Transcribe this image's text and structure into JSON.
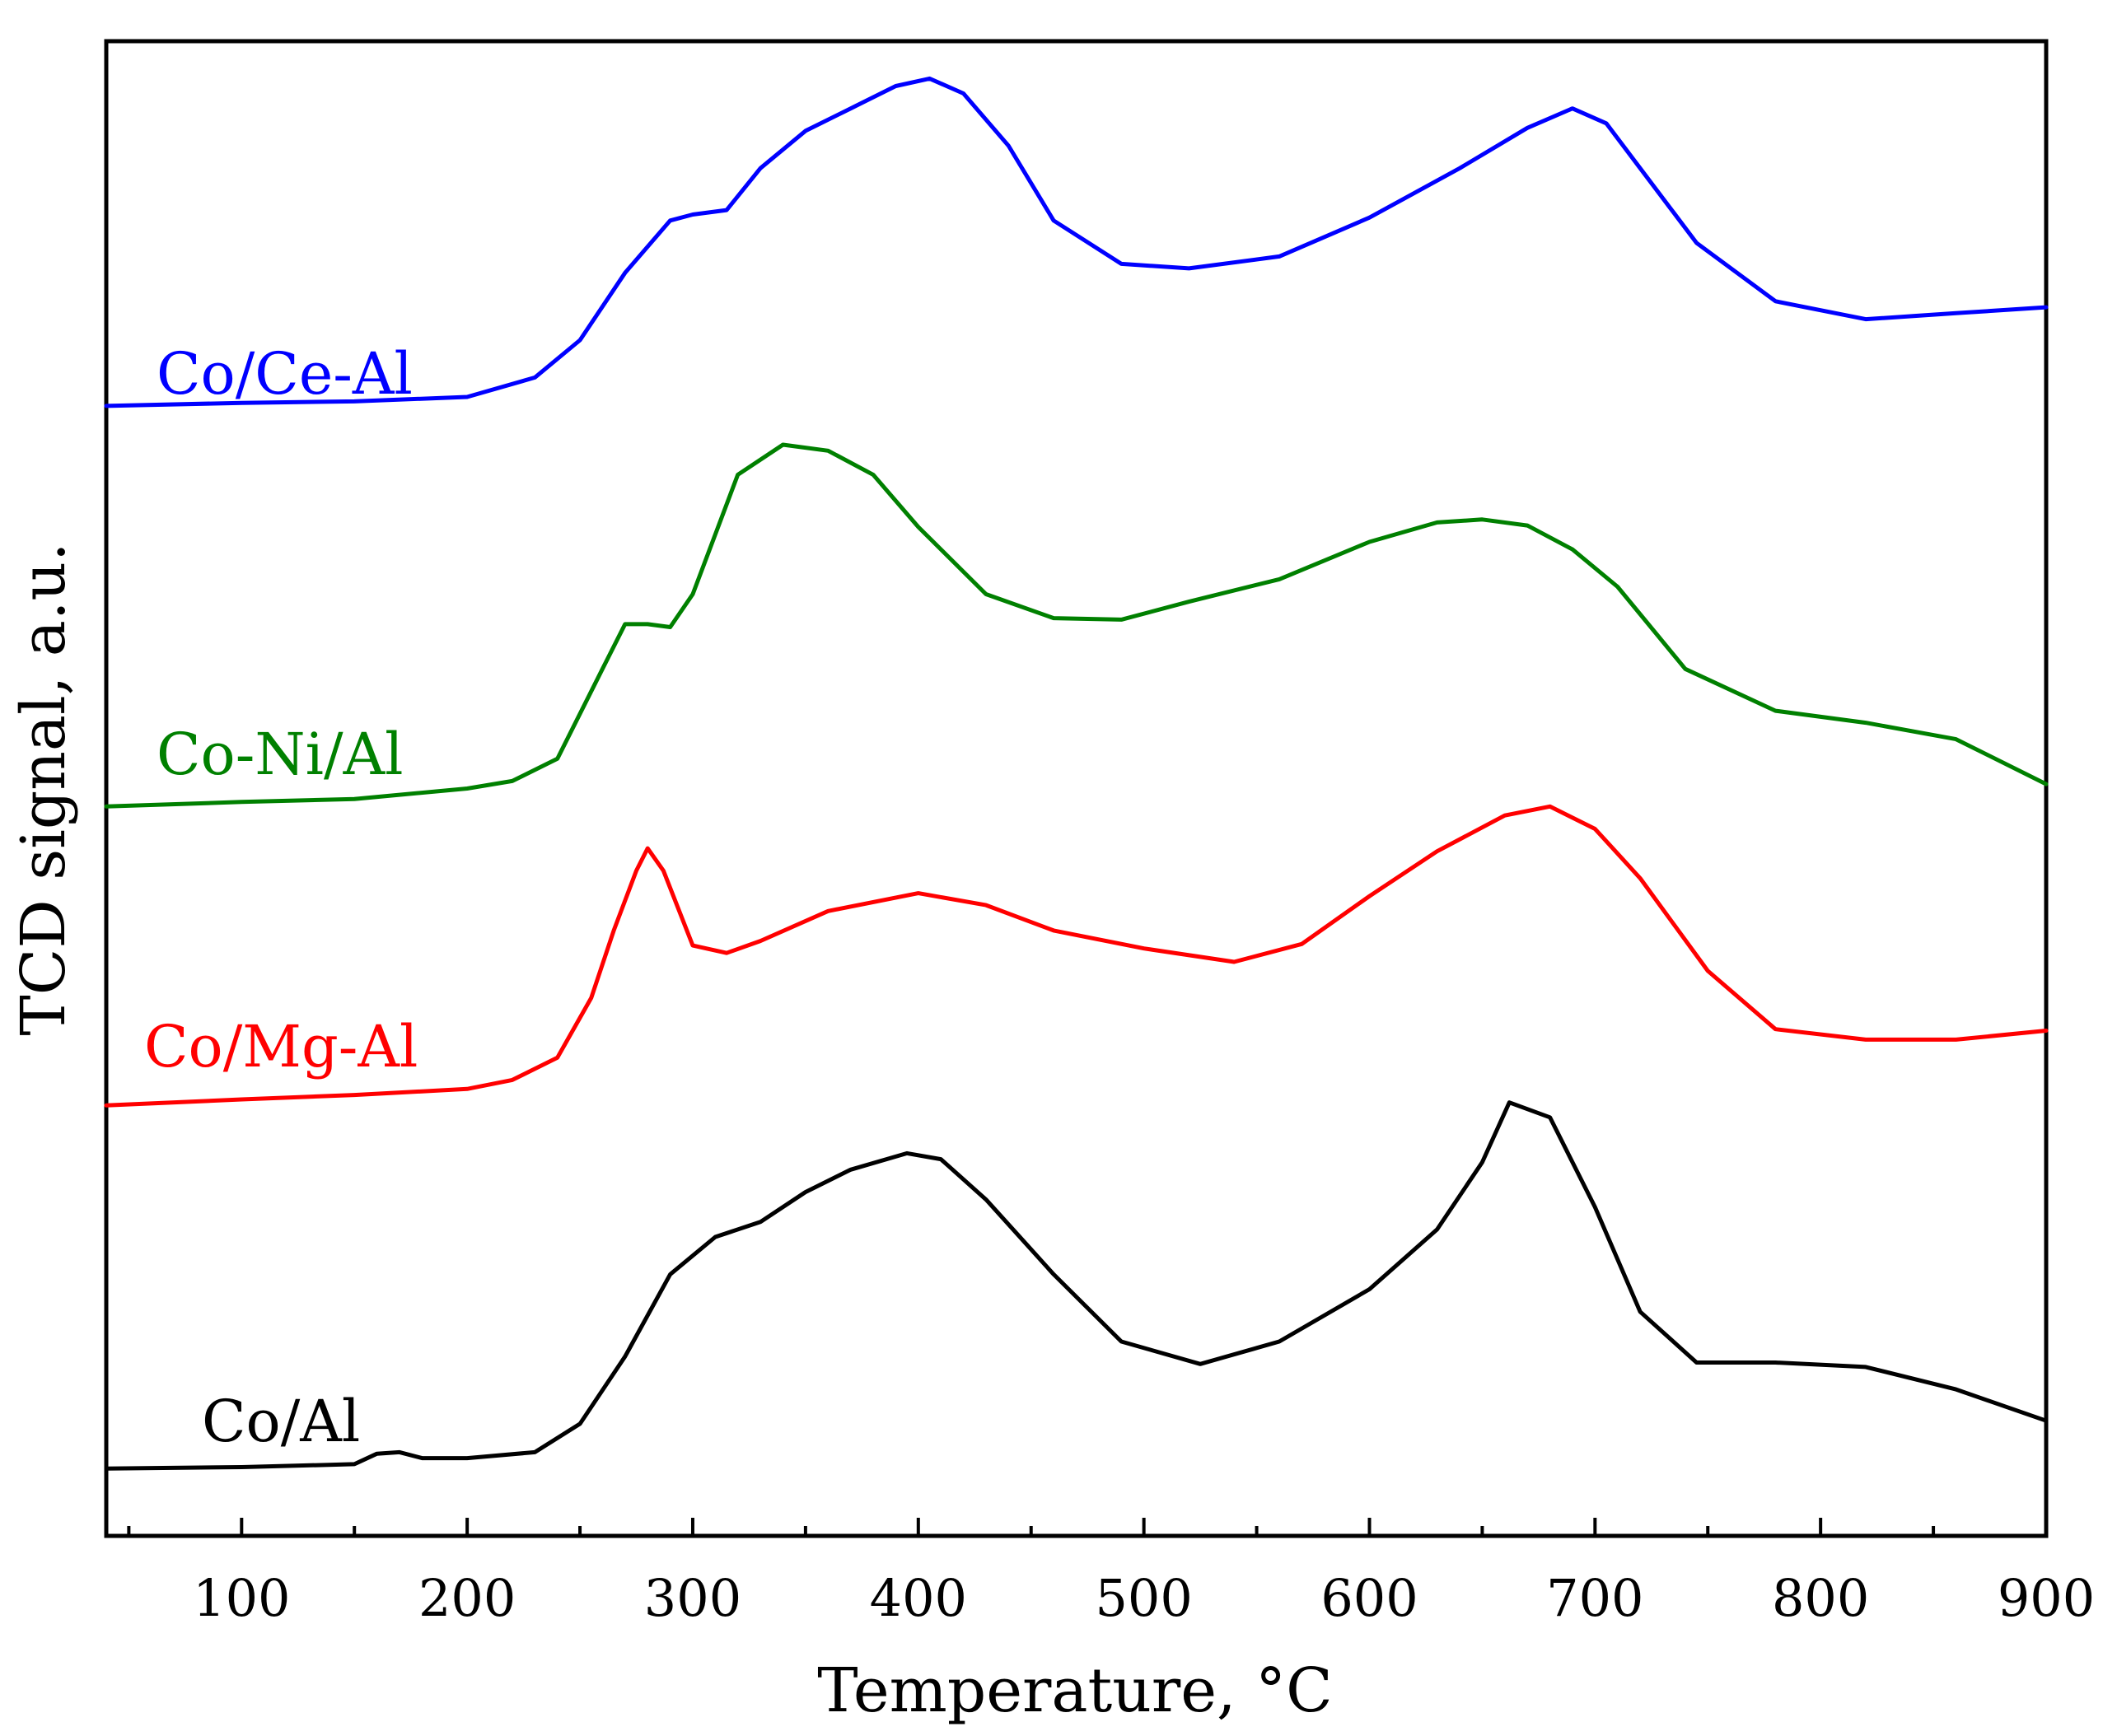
{
  "chart_data": {
    "type": "line",
    "title": "",
    "xlabel": "Temperature, °C",
    "ylabel": "TCD signal, a.u.",
    "xlim": [
      40,
      900
    ],
    "ylim": [
      0,
      100
    ],
    "xticks_major": [
      100,
      200,
      300,
      400,
      500,
      600,
      700,
      800,
      900
    ],
    "xticks_minor": [
      50,
      150,
      250,
      350,
      450,
      550,
      650,
      750,
      850
    ],
    "tick_labels": [
      "100",
      "200",
      "300",
      "400",
      "500",
      "600",
      "700",
      "800",
      "900"
    ],
    "y_tick_labels_shown": false,
    "grid": false,
    "legend": "inline labels on left",
    "series": [
      {
        "name": "Co/Ce-Al",
        "label": "Co/Ce-Al",
        "color": "#0000ff",
        "x": [
          40,
          100,
          150,
          200,
          230,
          250,
          270,
          290,
          300,
          315,
          330,
          350,
          370,
          390,
          405,
          420,
          440,
          460,
          490,
          520,
          560,
          600,
          640,
          670,
          690,
          705,
          720,
          745,
          780,
          820,
          860,
          900
        ],
        "y": [
          75.6,
          75.8,
          75.9,
          76.2,
          77.5,
          80.0,
          84.5,
          88.0,
          88.4,
          88.7,
          91.5,
          94.0,
          95.5,
          97.0,
          97.5,
          96.5,
          93.0,
          88.0,
          85.1,
          84.8,
          85.6,
          88.2,
          91.5,
          94.2,
          95.5,
          94.5,
          91.5,
          86.5,
          82.6,
          81.4,
          81.8,
          82.2
        ]
      },
      {
        "name": "Co-Ni/Al",
        "label": "Co-Ni/Al",
        "color": "#008000",
        "x": [
          40,
          100,
          150,
          200,
          220,
          240,
          260,
          270,
          280,
          290,
          300,
          320,
          340,
          360,
          380,
          400,
          430,
          460,
          490,
          520,
          560,
          600,
          630,
          650,
          670,
          690,
          710,
          740,
          780,
          820,
          860,
          900
        ],
        "y": [
          48.8,
          49.1,
          49.3,
          50.0,
          50.5,
          52.0,
          58.0,
          61.0,
          61.0,
          60.8,
          63.0,
          71.0,
          73.0,
          72.6,
          71.0,
          67.5,
          63.0,
          61.4,
          61.3,
          62.5,
          64.0,
          66.5,
          67.8,
          68.0,
          67.6,
          66.0,
          63.5,
          58.0,
          55.2,
          54.4,
          53.3,
          50.3
        ]
      },
      {
        "name": "Co/Mg-Al",
        "label": "Co/Mg-Al",
        "color": "#ff0000",
        "x": [
          40,
          100,
          150,
          200,
          220,
          240,
          255,
          265,
          275,
          280,
          287,
          300,
          315,
          330,
          360,
          400,
          430,
          460,
          500,
          540,
          570,
          600,
          630,
          660,
          680,
          700,
          720,
          750,
          780,
          820,
          860,
          900
        ],
        "y": [
          28.8,
          29.2,
          29.5,
          29.9,
          30.5,
          32.0,
          36.0,
          40.5,
          44.5,
          46.0,
          44.5,
          39.5,
          39.0,
          39.8,
          41.8,
          43.0,
          42.2,
          40.5,
          39.3,
          38.4,
          39.6,
          42.8,
          45.8,
          48.2,
          48.8,
          47.3,
          44.0,
          37.8,
          33.9,
          33.2,
          33.2,
          33.8
        ]
      },
      {
        "name": "Co/Al",
        "label": "Co/Al",
        "color": "#000000",
        "x": [
          40,
          100,
          150,
          160,
          170,
          180,
          200,
          230,
          250,
          270,
          290,
          310,
          330,
          350,
          370,
          395,
          410,
          430,
          460,
          490,
          525,
          560,
          600,
          630,
          650,
          662,
          680,
          700,
          720,
          745,
          780,
          820,
          860,
          900
        ],
        "y": [
          4.5,
          4.6,
          4.8,
          5.5,
          5.6,
          5.2,
          5.2,
          5.6,
          7.5,
          12.0,
          17.5,
          20.0,
          21.0,
          23.0,
          24.5,
          25.6,
          25.2,
          22.5,
          17.5,
          13.0,
          11.5,
          13.0,
          16.5,
          20.5,
          25.0,
          29.0,
          28.0,
          22.0,
          15.0,
          11.6,
          11.6,
          11.3,
          9.8,
          7.7
        ]
      }
    ]
  }
}
